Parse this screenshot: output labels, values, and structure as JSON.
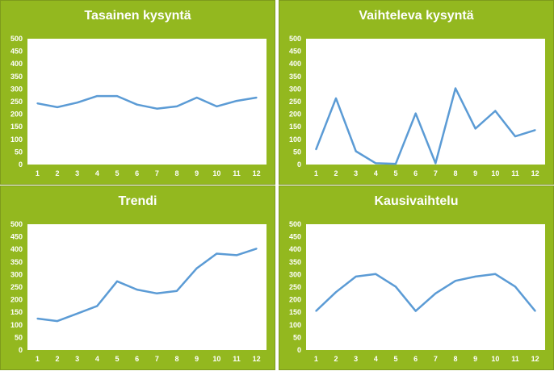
{
  "colors": {
    "panel": "#93b81f",
    "line": "#5b9bd5",
    "plot_bg": "#ffffff",
    "text": "#ffffff"
  },
  "chart_data": [
    {
      "type": "line",
      "title": "Tasainen kysyntä",
      "categories": [
        "1",
        "2",
        "3",
        "4",
        "5",
        "6",
        "7",
        "8",
        "9",
        "10",
        "11",
        "12"
      ],
      "values": [
        243,
        228,
        246,
        272,
        272,
        238,
        222,
        231,
        266,
        231,
        253,
        266
      ],
      "ylim": [
        0,
        500
      ],
      "yticks": [
        "0",
        "50",
        "100",
        "150",
        "200",
        "250",
        "300",
        "350",
        "400",
        "450",
        "500"
      ],
      "grid": false
    },
    {
      "type": "line",
      "title": "Vaihteleva kysyntä",
      "categories": [
        "1",
        "2",
        "3",
        "4",
        "5",
        "6",
        "7",
        "8",
        "9",
        "10",
        "11",
        "12"
      ],
      "values": [
        60,
        263,
        53,
        5,
        3,
        203,
        5,
        303,
        143,
        213,
        112,
        137
      ],
      "ylim": [
        0,
        500
      ],
      "yticks": [
        "0",
        "50",
        "100",
        "150",
        "200",
        "250",
        "300",
        "350",
        "400",
        "450",
        "500"
      ],
      "grid": false
    },
    {
      "type": "line",
      "title": "Trendi",
      "categories": [
        "1",
        "2",
        "3",
        "4",
        "5",
        "6",
        "7",
        "8",
        "9",
        "10",
        "11",
        "12"
      ],
      "values": [
        125,
        115,
        145,
        175,
        273,
        240,
        225,
        235,
        325,
        383,
        377,
        403
      ],
      "ylim": [
        0,
        500
      ],
      "yticks": [
        "0",
        "50",
        "100",
        "150",
        "200",
        "250",
        "300",
        "350",
        "400",
        "450",
        "500"
      ],
      "grid": false
    },
    {
      "type": "line",
      "title": "Kausivaihtelu",
      "categories": [
        "1",
        "2",
        "3",
        "4",
        "5",
        "6",
        "7",
        "8",
        "9",
        "10",
        "11",
        "12"
      ],
      "values": [
        155,
        230,
        292,
        302,
        252,
        155,
        225,
        275,
        292,
        302,
        252,
        155
      ],
      "ylim": [
        0,
        500
      ],
      "yticks": [
        "0",
        "50",
        "100",
        "150",
        "200",
        "250",
        "300",
        "350",
        "400",
        "450",
        "500"
      ],
      "grid": false
    }
  ]
}
